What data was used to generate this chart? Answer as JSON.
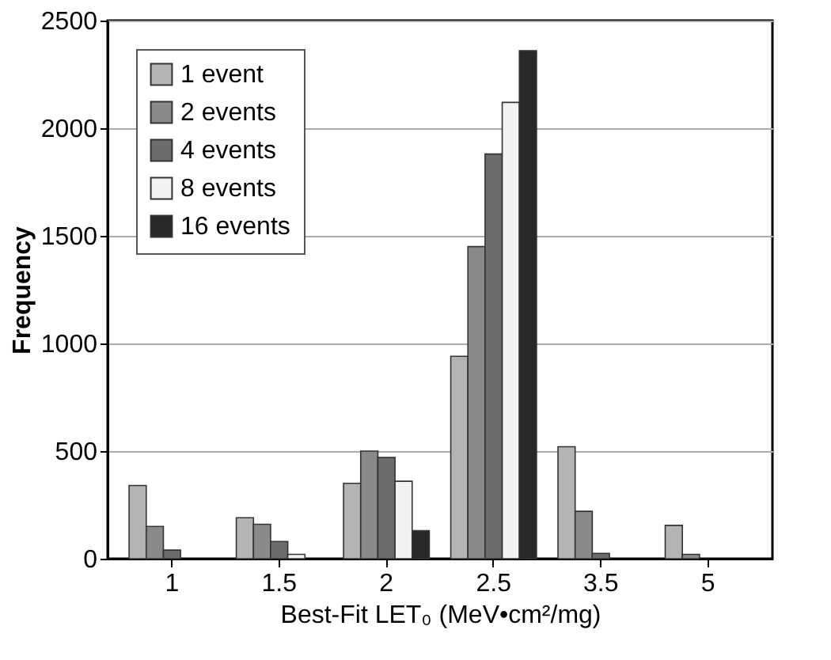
{
  "chart_data": {
    "type": "bar",
    "xlabel": "Best-Fit LET₀ (MeV•cm²/mg)",
    "ylabel": "Frequency",
    "categories": [
      "1",
      "1.5",
      "2",
      "2.5",
      "3.5",
      "5"
    ],
    "series": [
      {
        "name": "1 event",
        "color": "#b4b4b4",
        "values": [
          340,
          190,
          350,
          940,
          520,
          155
        ]
      },
      {
        "name": "2 events",
        "color": "#8a8a8a",
        "values": [
          150,
          160,
          500,
          1450,
          220,
          20
        ]
      },
      {
        "name": "4 events",
        "color": "#6c6c6c",
        "values": [
          40,
          80,
          470,
          1880,
          25,
          0
        ]
      },
      {
        "name": "8 events",
        "color": "#f2f2f2",
        "values": [
          0,
          20,
          360,
          2120,
          0,
          0
        ]
      },
      {
        "name": "16 events",
        "color": "#282828",
        "values": [
          0,
          0,
          130,
          2360,
          0,
          0
        ]
      }
    ],
    "ylim": [
      0,
      2500
    ],
    "yticks": [
      0,
      500,
      1000,
      1500,
      2000,
      2500
    ],
    "grid": "y",
    "legend": "top left"
  }
}
